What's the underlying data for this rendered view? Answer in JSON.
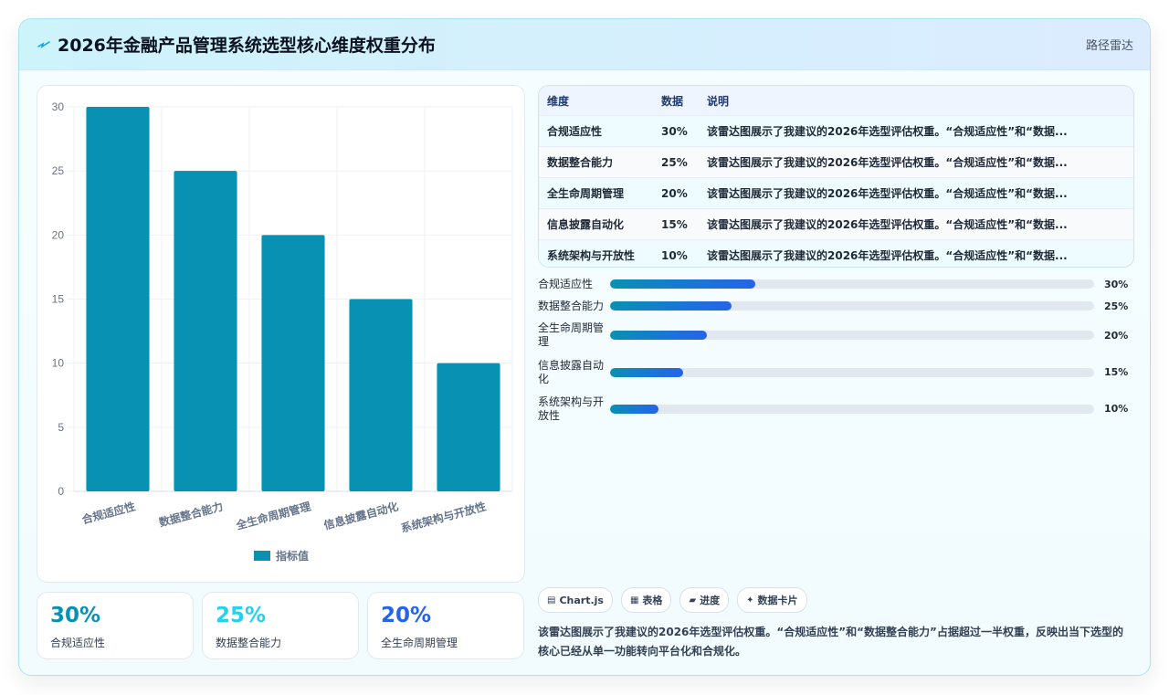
{
  "header": {
    "title": "2026年金融产品管理系统选型核心维度权重分布",
    "mode_label": "路径雷达",
    "logo_icon": "spark-icon"
  },
  "chart_data": {
    "type": "bar",
    "categories": [
      "合规适应性",
      "数据整合能力",
      "全生命周期管理",
      "信息披露自动化",
      "系统架构与开放性"
    ],
    "series": [
      {
        "name": "指标值",
        "values": [
          30,
          25,
          20,
          15,
          10
        ],
        "color": "#0891b2"
      }
    ],
    "ylim": [
      0,
      30
    ],
    "yticks": [
      0,
      5,
      10,
      15,
      20,
      25,
      30
    ],
    "grid": true,
    "legend": "bottom"
  },
  "stats": [
    {
      "value": "30%",
      "label": "合规适应性",
      "color": "#0891b2"
    },
    {
      "value": "25%",
      "label": "数据整合能力",
      "color": "#22d3ee"
    },
    {
      "value": "20%",
      "label": "全生命周期管理",
      "color": "#2563eb"
    }
  ],
  "table": {
    "headers": [
      "维度",
      "数据",
      "说明"
    ],
    "rows": [
      [
        "合规适应性",
        "30%",
        "该雷达图展示了我建议的2026年选型评估权重。“合规适应性”和“数据..."
      ],
      [
        "数据整合能力",
        "25%",
        "该雷达图展示了我建议的2026年选型评估权重。“合规适应性”和“数据..."
      ],
      [
        "全生命周期管理",
        "20%",
        "该雷达图展示了我建议的2026年选型评估权重。“合规适应性”和“数据..."
      ],
      [
        "信息披露自动化",
        "15%",
        "该雷达图展示了我建议的2026年选型评估权重。“合规适应性”和“数据..."
      ],
      [
        "系统架构与开放性",
        "10%",
        "该雷达图展示了我建议的2026年选型评估权重。“合规适应性”和“数据..."
      ]
    ]
  },
  "progress": [
    {
      "label": "合规适应性",
      "value": "30%",
      "fraction": 0.3
    },
    {
      "label": "数据整合能力",
      "value": "25%",
      "fraction": 0.25
    },
    {
      "label": "全生命周期管理",
      "value": "20%",
      "fraction": 0.2
    },
    {
      "label": "信息披露自动化",
      "value": "15%",
      "fraction": 0.15
    },
    {
      "label": "系统架构与开放性",
      "value": "10%",
      "fraction": 0.1
    }
  ],
  "chips": [
    {
      "icon": "chart-icon",
      "glyph": "▤",
      "label": "Chart.js"
    },
    {
      "icon": "table-icon",
      "glyph": "▦",
      "label": "表格"
    },
    {
      "icon": "progress-icon",
      "glyph": "▰",
      "label": "进度"
    },
    {
      "icon": "card-icon",
      "glyph": "✦",
      "label": "数据卡片"
    }
  ],
  "summary": "该雷达图展示了我建议的2026年选型评估权重。“合规适应性”和“数据整合能力”占据超过一半权重，反映出当下选型的核心已经从单一功能转向平台化和合规化。"
}
